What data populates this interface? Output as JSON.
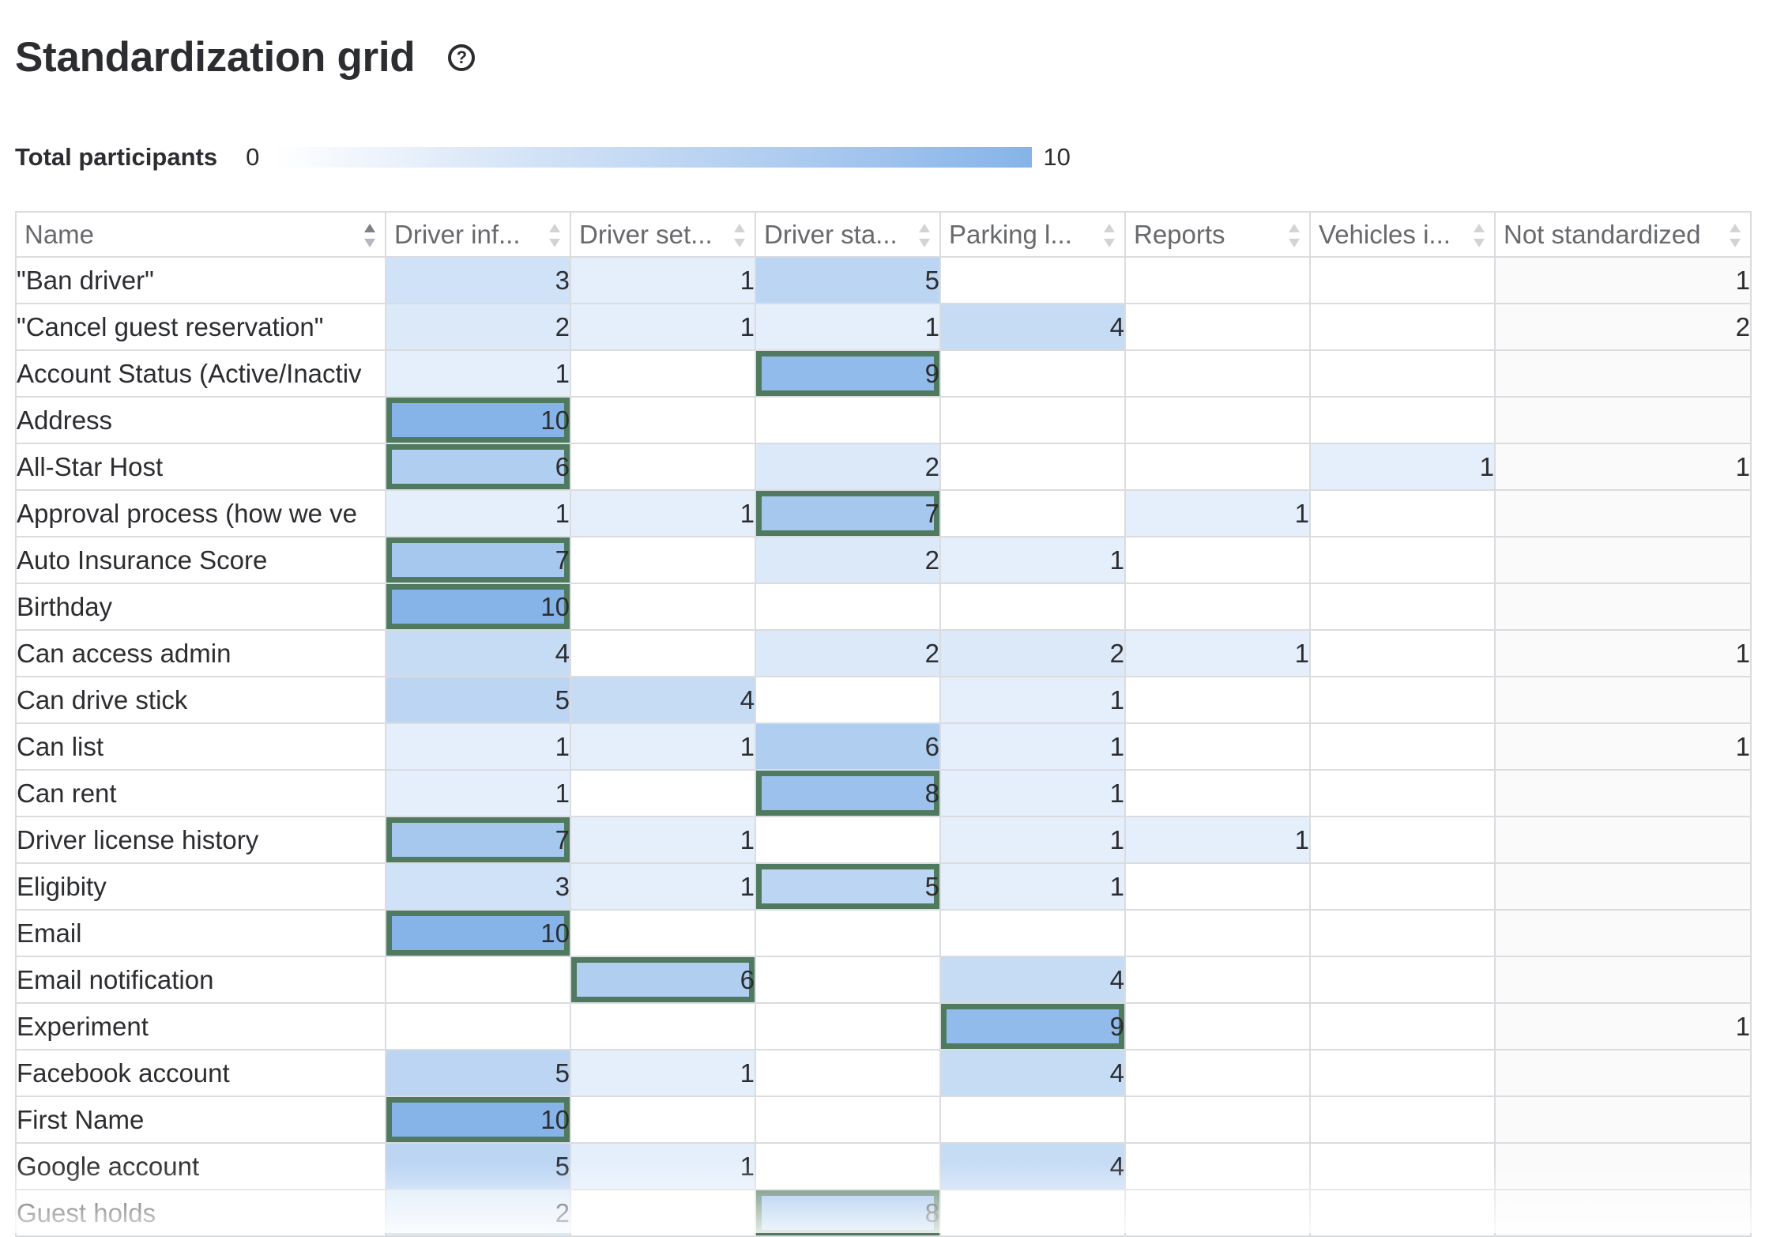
{
  "header": {
    "title": "Standardization grid",
    "help_icon": "question-circle-icon"
  },
  "legend": {
    "label": "Total participants",
    "min": "0",
    "max": "10",
    "colors": [
      "#ffffff",
      "#86b4e8"
    ]
  },
  "grid": {
    "max_value": 10,
    "columns": [
      "Name",
      "Driver inf...",
      "Driver set...",
      "Driver sta...",
      "Parking l...",
      "Reports",
      "Vehicles i...",
      "Not standardized"
    ],
    "rows": [
      {
        "name": "\"Ban driver\"",
        "values": [
          3,
          1,
          5,
          null,
          null,
          null,
          1
        ],
        "standardized": null
      },
      {
        "name": "\"Cancel guest reservation\"",
        "values": [
          2,
          1,
          1,
          4,
          null,
          null,
          2
        ],
        "standardized": null
      },
      {
        "name": "Account Status (Active/Inactiv",
        "values": [
          1,
          null,
          9,
          null,
          null,
          null,
          null
        ],
        "standardized": 2
      },
      {
        "name": "Address",
        "values": [
          10,
          null,
          null,
          null,
          null,
          null,
          null
        ],
        "standardized": 0
      },
      {
        "name": "All-Star Host",
        "values": [
          6,
          null,
          2,
          null,
          null,
          1,
          1
        ],
        "standardized": 0
      },
      {
        "name": "Approval process (how we ve",
        "values": [
          1,
          1,
          7,
          null,
          1,
          null,
          null
        ],
        "standardized": 2
      },
      {
        "name": "Auto Insurance Score",
        "values": [
          7,
          null,
          2,
          1,
          null,
          null,
          null
        ],
        "standardized": 0
      },
      {
        "name": "Birthday",
        "values": [
          10,
          null,
          null,
          null,
          null,
          null,
          null
        ],
        "standardized": 0
      },
      {
        "name": "Can access admin",
        "values": [
          4,
          null,
          2,
          2,
          1,
          null,
          1
        ],
        "standardized": null
      },
      {
        "name": "Can drive stick",
        "values": [
          5,
          4,
          null,
          1,
          null,
          null,
          null
        ],
        "standardized": null
      },
      {
        "name": "Can list",
        "values": [
          1,
          1,
          6,
          1,
          null,
          null,
          1
        ],
        "standardized": null
      },
      {
        "name": "Can rent",
        "values": [
          1,
          null,
          8,
          1,
          null,
          null,
          null
        ],
        "standardized": 2
      },
      {
        "name": "Driver license history",
        "values": [
          7,
          1,
          null,
          1,
          1,
          null,
          null
        ],
        "standardized": 0
      },
      {
        "name": "Eligibity",
        "values": [
          3,
          1,
          5,
          1,
          null,
          null,
          null
        ],
        "standardized": 2
      },
      {
        "name": "Email",
        "values": [
          10,
          null,
          null,
          null,
          null,
          null,
          null
        ],
        "standardized": 0
      },
      {
        "name": "Email notification",
        "values": [
          null,
          6,
          null,
          4,
          null,
          null,
          null
        ],
        "standardized": 1
      },
      {
        "name": "Experiment",
        "values": [
          null,
          null,
          null,
          9,
          null,
          null,
          1
        ],
        "standardized": 3
      },
      {
        "name": "Facebook account",
        "values": [
          5,
          1,
          null,
          4,
          null,
          null,
          null
        ],
        "standardized": null
      },
      {
        "name": "First Name",
        "values": [
          10,
          null,
          null,
          null,
          null,
          null,
          null
        ],
        "standardized": 0
      },
      {
        "name": "Google account",
        "values": [
          5,
          1,
          null,
          4,
          null,
          null,
          null
        ],
        "standardized": null
      },
      {
        "name": "Guest holds",
        "values": [
          2,
          null,
          8,
          null,
          null,
          null,
          null
        ],
        "standardized": 2
      }
    ]
  }
}
